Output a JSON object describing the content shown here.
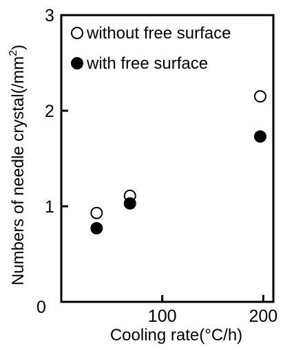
{
  "chart_data": {
    "type": "scatter",
    "title": "",
    "xlabel": "Cooling rate(°C/h)",
    "ylabel_main": "Numbers of needle crystal(/mm",
    "ylabel_sup": "2",
    "ylabel_tail": ")",
    "xlim": [
      0,
      210
    ],
    "ylim": [
      0,
      3
    ],
    "x_ticks": [
      100,
      200
    ],
    "y_ticks": [
      1,
      2,
      3
    ],
    "origin_label": "0",
    "grid": false,
    "legend_position": "top-right",
    "series": [
      {
        "name": "without free surface",
        "marker": "open-circle",
        "points": [
          {
            "x": 35,
            "y": 0.93
          },
          {
            "x": 68,
            "y": 1.11
          },
          {
            "x": 197,
            "y": 2.15
          }
        ]
      },
      {
        "name": "with free surface",
        "marker": "filled-circle",
        "points": [
          {
            "x": 35,
            "y": 0.77
          },
          {
            "x": 68,
            "y": 1.03
          },
          {
            "x": 197,
            "y": 1.73
          }
        ]
      }
    ]
  },
  "colors": {
    "ink": "#000000",
    "background": "#ffffff"
  }
}
